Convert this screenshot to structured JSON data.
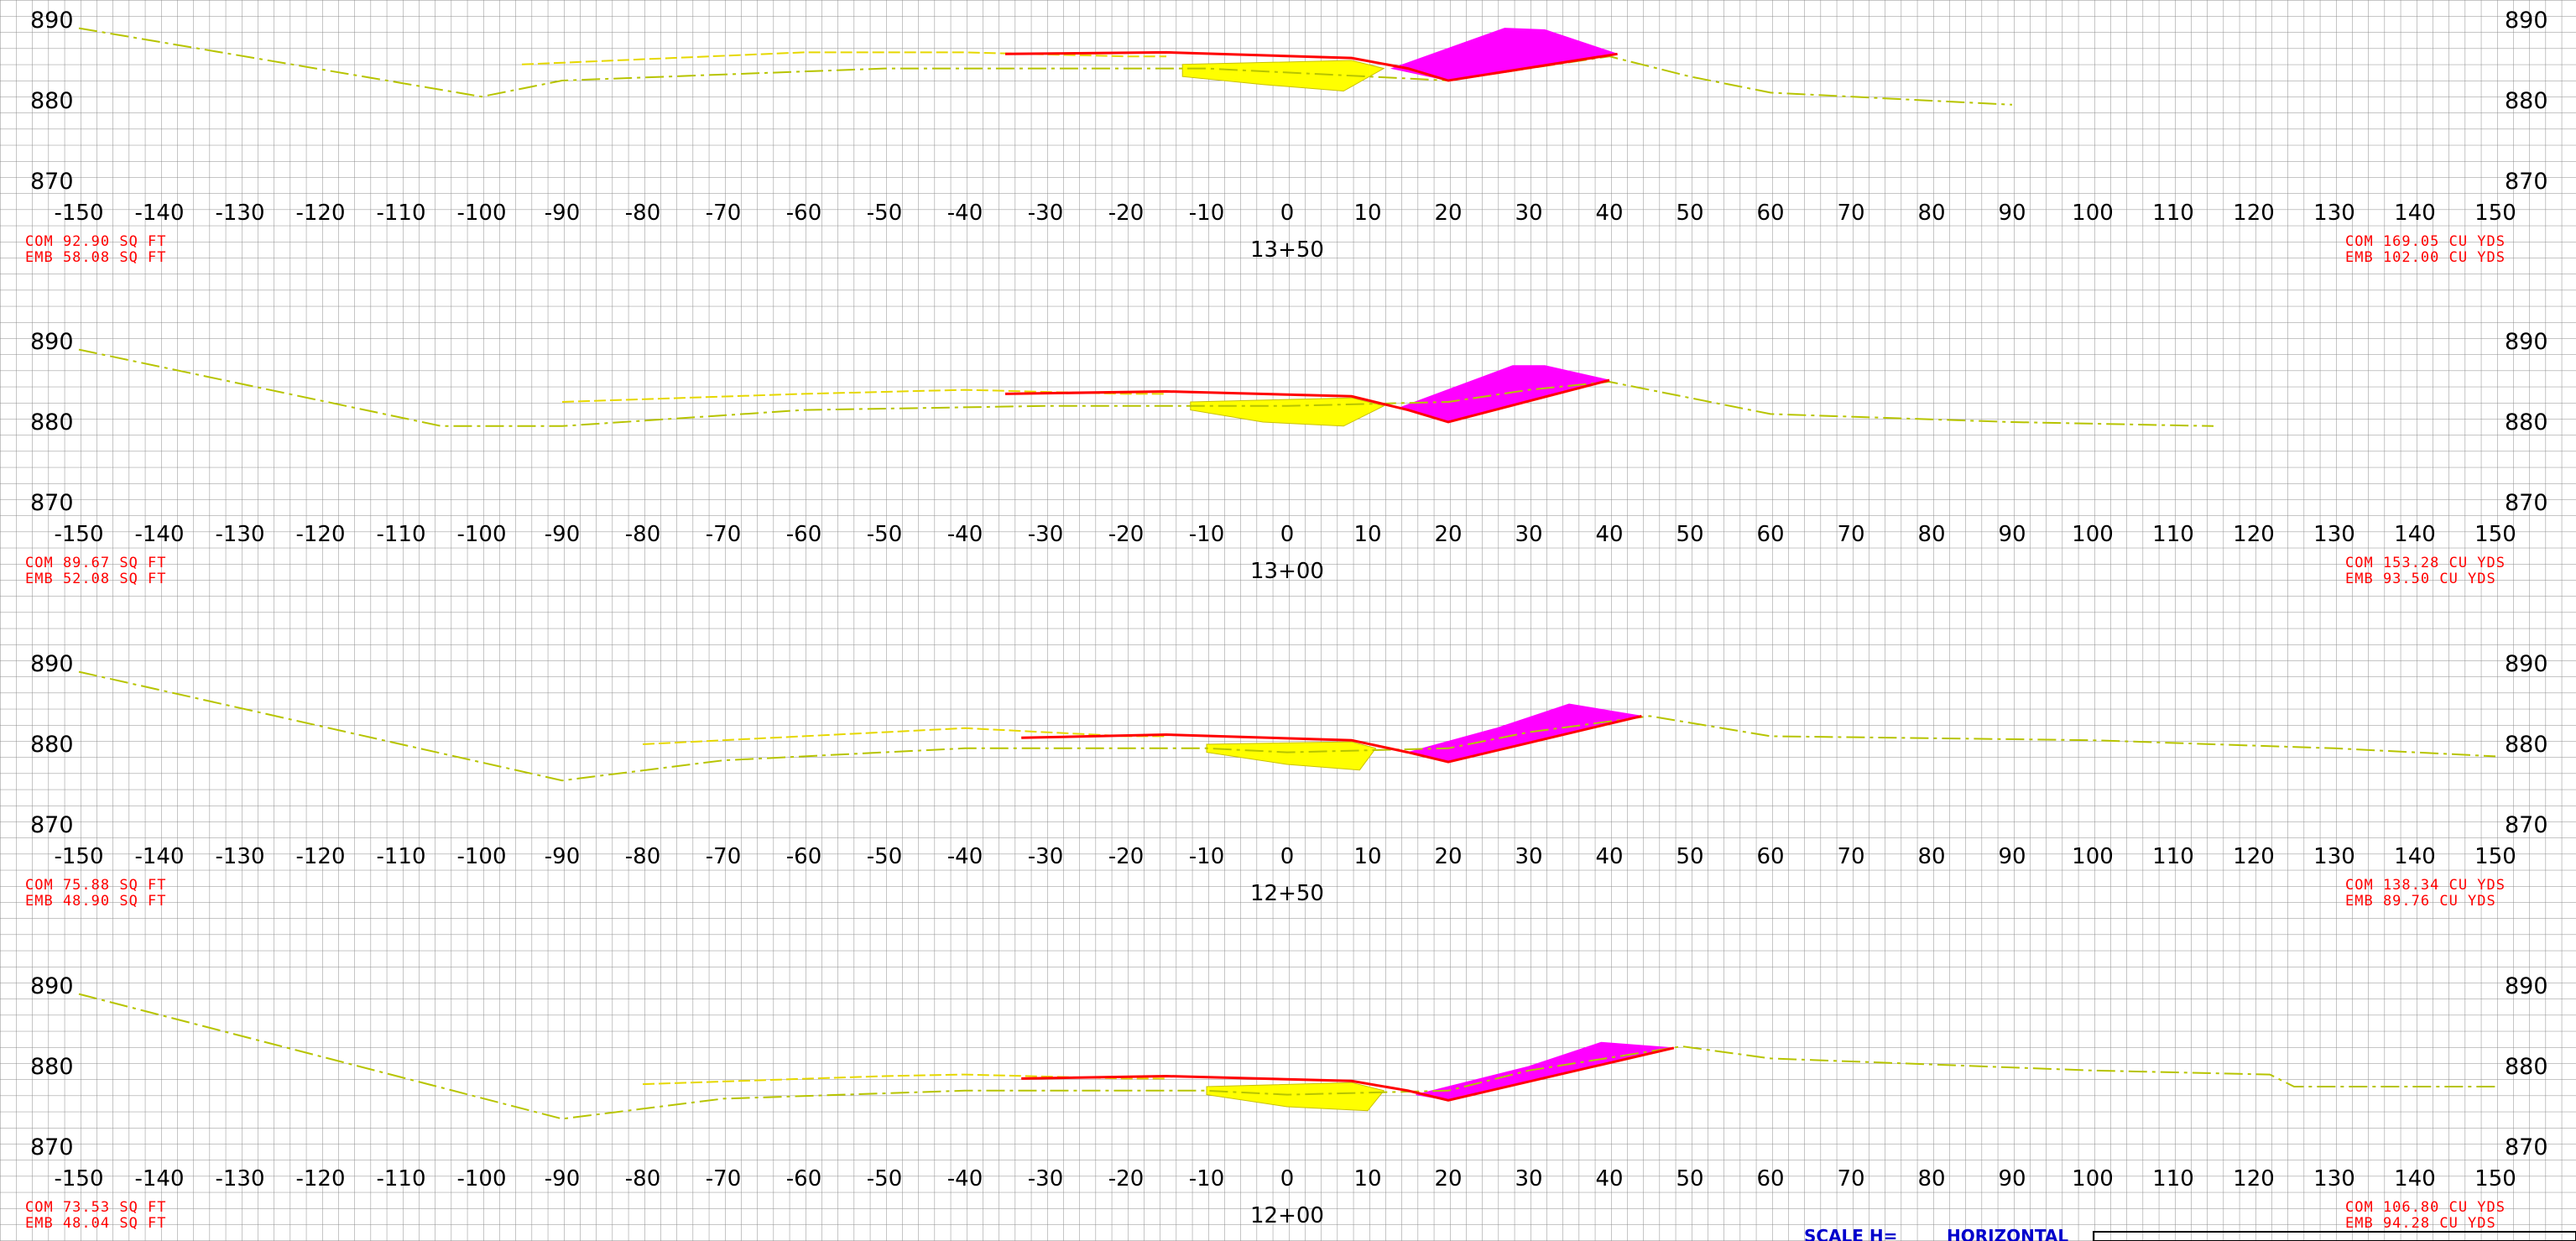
{
  "colors": {
    "grid": "#8c8c8c",
    "ground": "#b7c400",
    "subgrade": "#e6d800",
    "design": "#ff0000",
    "cut_fill": "#ff00ff",
    "embankment_fill": "#ffff00",
    "quantity_text": "#ff0000",
    "scale_text": "#0000cc"
  },
  "sheet": {
    "scale_label": "SCALE  H=",
    "scale_type": "HORIZONTAL"
  },
  "sections": [
    {
      "station": "13+50",
      "elev_labels": [
        "890",
        "880",
        "870"
      ],
      "area_com": "COM  92.90  SQ  FT",
      "area_emb": "EMB  58.08  SQ  FT",
      "vol_com": "COM  169.05  CU  YDS",
      "vol_emb": "EMB  102.00  CU  YDS",
      "ground": [
        [
          -150,
          889
        ],
        [
          -100,
          880.5
        ],
        [
          -90,
          882.5
        ],
        [
          -50,
          884
        ],
        [
          -10,
          884
        ],
        [
          0,
          883.5
        ],
        [
          10,
          883
        ],
        [
          20,
          882.5
        ],
        [
          30,
          884
        ],
        [
          40,
          885.5
        ],
        [
          50,
          883
        ],
        [
          60,
          881
        ],
        [
          90,
          879.5
        ]
      ],
      "subgrade": [
        [
          -95,
          884.5
        ],
        [
          -60,
          886
        ],
        [
          -40,
          886
        ],
        [
          -20,
          885.5
        ],
        [
          -15,
          885.5
        ]
      ],
      "design": [
        [
          -35,
          885.8
        ],
        [
          -15,
          886
        ],
        [
          8,
          885.3
        ],
        [
          15,
          884
        ],
        [
          20,
          882.5
        ],
        [
          41,
          885.8
        ]
      ],
      "emb_fill": [
        [
          -13,
          884.5
        ],
        [
          8,
          885
        ],
        [
          12,
          884
        ],
        [
          7,
          881.2
        ],
        [
          -3,
          882
        ],
        [
          -13,
          883
        ]
      ],
      "cut_fill": [
        [
          13,
          884
        ],
        [
          27,
          889
        ],
        [
          32,
          888.8
        ],
        [
          41,
          885.8
        ],
        [
          20,
          882.5
        ]
      ]
    },
    {
      "station": "13+00",
      "elev_labels": [
        "890",
        "880",
        "870"
      ],
      "area_com": "COM  89.67  SQ  FT",
      "area_emb": "EMB  52.08  SQ  FT",
      "vol_com": "COM  153.28  CU  YDS",
      "vol_emb": "EMB  93.50  CU  YDS",
      "ground": [
        [
          -150,
          889
        ],
        [
          -105,
          879.5
        ],
        [
          -90,
          879.5
        ],
        [
          -60,
          881.5
        ],
        [
          -30,
          882
        ],
        [
          0,
          882
        ],
        [
          20,
          882.5
        ],
        [
          30,
          884
        ],
        [
          40,
          885
        ],
        [
          60,
          881
        ],
        [
          90,
          880
        ],
        [
          115,
          879.5
        ]
      ],
      "subgrade": [
        [
          -90,
          882.5
        ],
        [
          -60,
          883.5
        ],
        [
          -40,
          884
        ],
        [
          -20,
          883.5
        ],
        [
          -15,
          883.5
        ]
      ],
      "design": [
        [
          -35,
          883.5
        ],
        [
          -15,
          883.8
        ],
        [
          8,
          883.2
        ],
        [
          15,
          881.5
        ],
        [
          20,
          880
        ],
        [
          40,
          885.2
        ]
      ],
      "emb_fill": [
        [
          -12,
          882.5
        ],
        [
          8,
          883
        ],
        [
          12,
          882
        ],
        [
          7,
          879.5
        ],
        [
          -3,
          880
        ],
        [
          -12,
          881.5
        ]
      ],
      "cut_fill": [
        [
          14,
          881.8
        ],
        [
          28,
          887
        ],
        [
          32,
          887
        ],
        [
          40,
          885.2
        ],
        [
          20,
          880
        ]
      ]
    },
    {
      "station": "12+50",
      "elev_labels": [
        "890",
        "880",
        "870"
      ],
      "area_com": "COM  75.88  SQ  FT",
      "area_emb": "EMB  48.90  SQ  FT",
      "vol_com": "COM  138.34  CU  YDS",
      "vol_emb": "EMB  89.76  CU  YDS",
      "ground": [
        [
          -150,
          889
        ],
        [
          -90,
          875.5
        ],
        [
          -70,
          878
        ],
        [
          -40,
          879.5
        ],
        [
          -10,
          879.5
        ],
        [
          0,
          879
        ],
        [
          20,
          879.5
        ],
        [
          30,
          881.5
        ],
        [
          45,
          883.5
        ],
        [
          60,
          881
        ],
        [
          100,
          880.5
        ],
        [
          130,
          879.5
        ],
        [
          150,
          878.5
        ]
      ],
      "subgrade": [
        [
          -80,
          880
        ],
        [
          -50,
          881.5
        ],
        [
          -40,
          882
        ],
        [
          -20,
          881
        ],
        [
          -15,
          881
        ]
      ],
      "design": [
        [
          -33,
          880.8
        ],
        [
          -15,
          881.2
        ],
        [
          8,
          880.5
        ],
        [
          15,
          879
        ],
        [
          20,
          877.8
        ],
        [
          44,
          883.5
        ]
      ],
      "emb_fill": [
        [
          -10,
          880
        ],
        [
          8,
          880.3
        ],
        [
          11,
          879.5
        ],
        [
          9,
          876.8
        ],
        [
          0,
          877.5
        ],
        [
          -10,
          879
        ]
      ],
      "cut_fill": [
        [
          15,
          879
        ],
        [
          26,
          882
        ],
        [
          35,
          885
        ],
        [
          44,
          883.5
        ],
        [
          20,
          877.8
        ]
      ]
    },
    {
      "station": "12+00",
      "elev_labels": [
        "890",
        "880",
        "870"
      ],
      "area_com": "COM  73.53  SQ  FT",
      "area_emb": "EMB  48.04  SQ  FT",
      "vol_com": "COM  106.80  CU  YDS",
      "vol_emb": "EMB  94.28  CU  YDS",
      "ground": [
        [
          -150,
          889
        ],
        [
          -90,
          873.5
        ],
        [
          -70,
          876
        ],
        [
          -40,
          877
        ],
        [
          -10,
          877
        ],
        [
          0,
          876.5
        ],
        [
          20,
          877
        ],
        [
          30,
          879.5
        ],
        [
          49,
          882.5
        ],
        [
          60,
          881
        ],
        [
          100,
          879.5
        ],
        [
          122,
          879
        ],
        [
          125,
          877.5
        ],
        [
          150,
          877.5
        ]
      ],
      "subgrade": [
        [
          -80,
          877.8
        ],
        [
          -50,
          878.8
        ],
        [
          -40,
          879
        ],
        [
          -20,
          878.5
        ],
        [
          -15,
          878.5
        ]
      ],
      "design": [
        [
          -33,
          878.5
        ],
        [
          -15,
          878.8
        ],
        [
          8,
          878.2
        ],
        [
          15,
          877
        ],
        [
          20,
          875.8
        ],
        [
          48,
          882.3
        ]
      ],
      "emb_fill": [
        [
          -10,
          877.5
        ],
        [
          8,
          878
        ],
        [
          12,
          877
        ],
        [
          10,
          874.5
        ],
        [
          0,
          875
        ],
        [
          -10,
          876.5
        ]
      ],
      "cut_fill": [
        [
          16,
          876.5
        ],
        [
          30,
          880
        ],
        [
          39,
          883
        ],
        [
          48,
          882.3
        ],
        [
          20,
          875.8
        ]
      ]
    }
  ],
  "offsets": [
    "-150",
    "-140",
    "-130",
    "-120",
    "-110",
    "-100",
    "-90",
    "-80",
    "-70",
    "-60",
    "-50",
    "-40",
    "-30",
    "-20",
    "-10",
    "0",
    "10",
    "20",
    "30",
    "40",
    "50",
    "60",
    "70",
    "80",
    "90",
    "100",
    "110",
    "120",
    "130",
    "140",
    "150"
  ]
}
